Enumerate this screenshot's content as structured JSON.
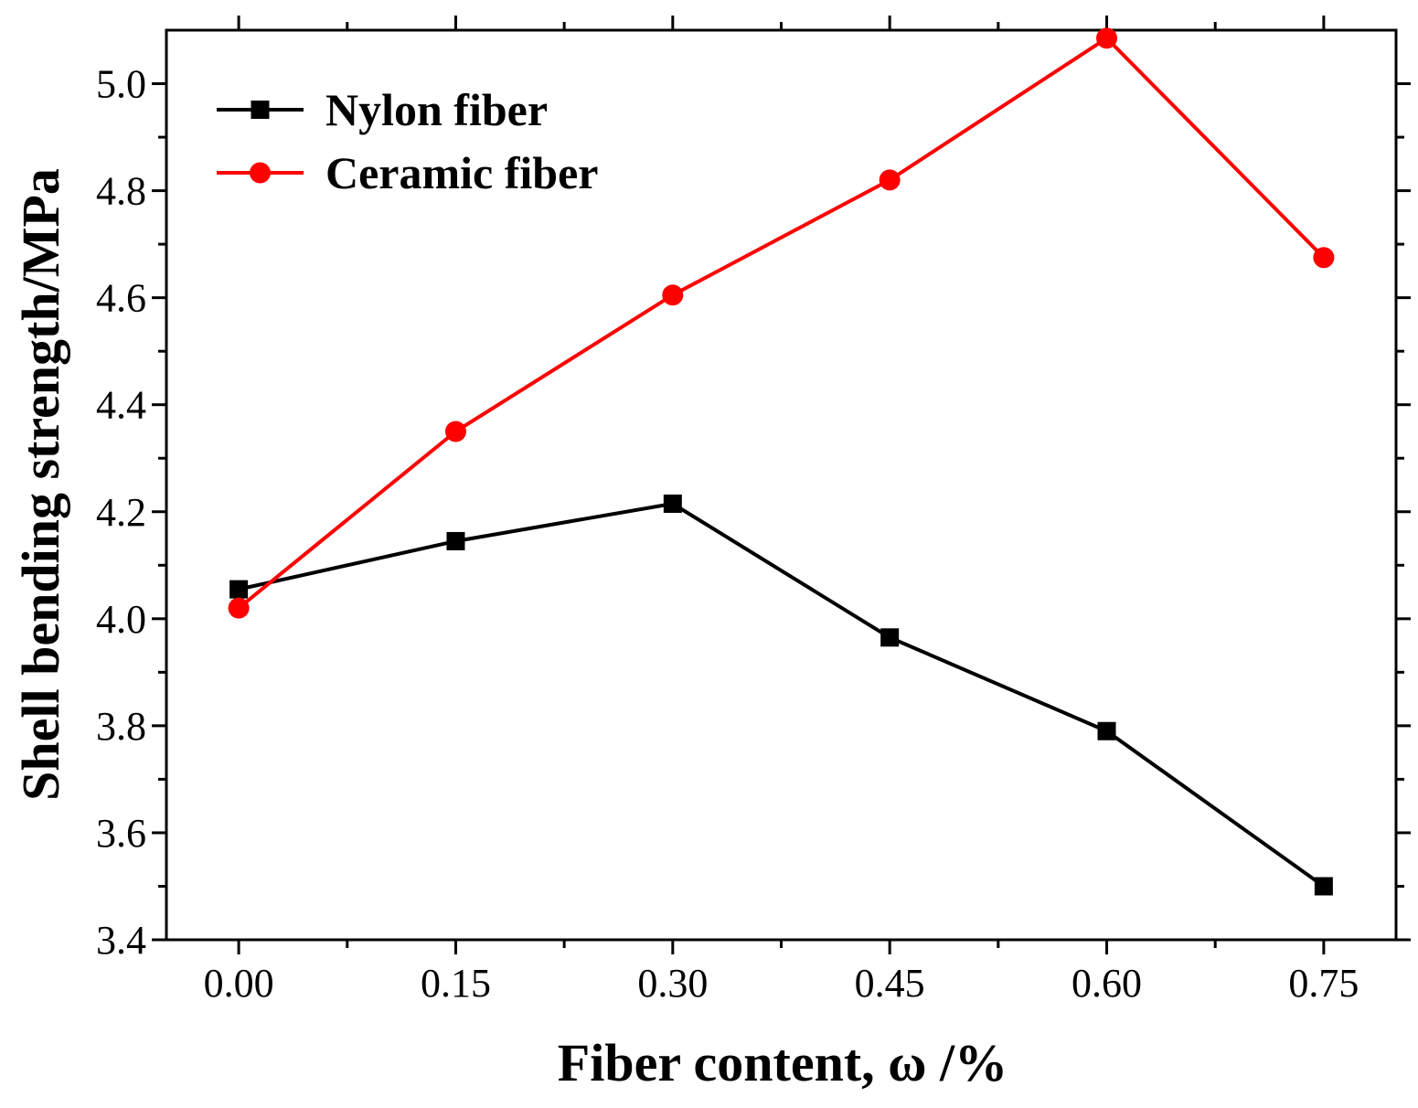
{
  "chart_data": {
    "type": "line",
    "title": "",
    "xlabel": "Fiber content, ω /%",
    "ylabel": "Shell bending strength/MPa",
    "x": [
      0.0,
      0.15,
      0.3,
      0.45,
      0.6,
      0.75
    ],
    "x_tick_labels": [
      "0.00",
      "0.15",
      "0.30",
      "0.45",
      "0.60",
      "0.75"
    ],
    "y_ticks": [
      3.4,
      3.6,
      3.8,
      4.0,
      4.2,
      4.4,
      4.6,
      4.8,
      5.0
    ],
    "y_tick_labels": [
      "3.4",
      "3.6",
      "3.8",
      "4.0",
      "4.2",
      "4.4",
      "4.6",
      "4.8",
      "5.0"
    ],
    "xlim": [
      -0.05,
      0.8
    ],
    "ylim": [
      3.4,
      5.1
    ],
    "grid": false,
    "legend_position": "top-left",
    "series": [
      {
        "name": "Nylon fiber",
        "marker": "square",
        "color": "#000000",
        "values": [
          4.055,
          4.145,
          4.215,
          3.965,
          3.79,
          3.5
        ]
      },
      {
        "name": "Ceramic fiber",
        "marker": "circle",
        "color": "#ff0000",
        "values": [
          4.02,
          4.35,
          4.605,
          4.82,
          5.085,
          4.675
        ]
      }
    ]
  }
}
